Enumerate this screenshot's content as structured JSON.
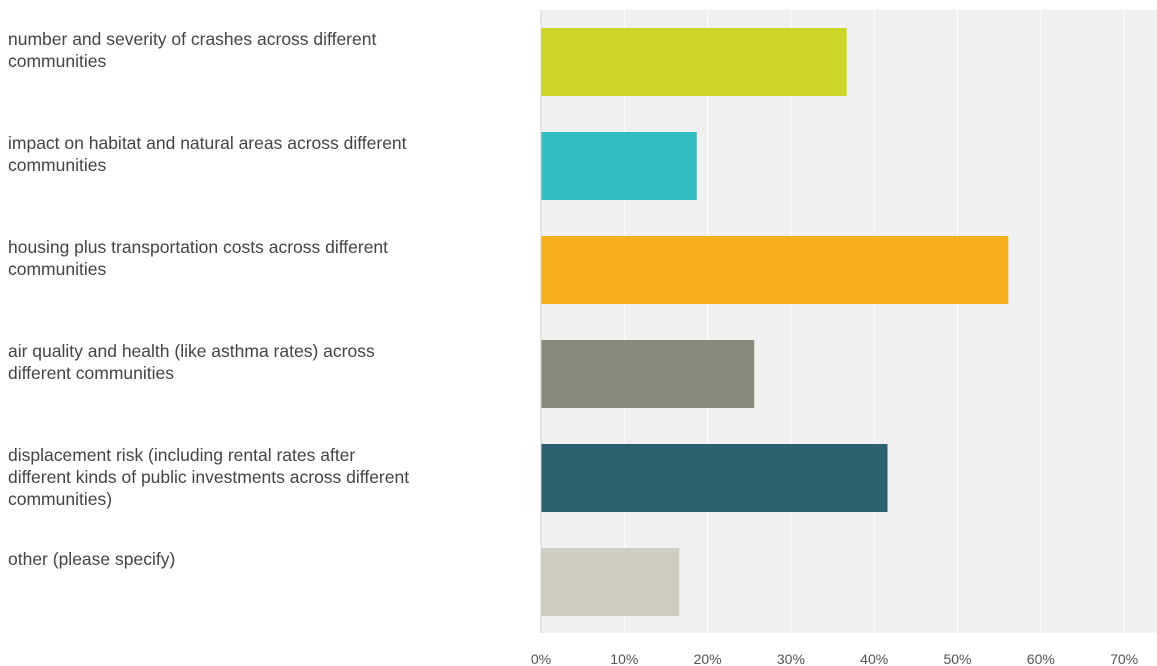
{
  "chart_data": {
    "type": "bar",
    "orientation": "horizontal",
    "title": "",
    "xlabel": "",
    "ylabel": "",
    "categories": [
      "number and severity of crashes across different communities",
      "impact on habitat and natural areas across different communities",
      "housing plus transportation costs across different communities",
      "air quality and health (like asthma rates) across different communities",
      "displacement risk (including rental rates after different kinds of public investments across different communities)",
      "other (please specify)"
    ],
    "category_label_lines": [
      [
        "number and severity of crashes across different",
        "communities"
      ],
      [
        "impact on habitat and natural areas across different",
        "communities"
      ],
      [
        "housing plus transportation costs across different",
        "communities"
      ],
      [
        "air quality and health (like asthma rates) across",
        "different communities"
      ],
      [
        "displacement risk (including rental rates after",
        "different kinds of public investments across different",
        "communities)"
      ],
      [
        "other (please specify)"
      ]
    ],
    "values": [
      36.7,
      18.7,
      56.1,
      25.6,
      41.6,
      16.6
    ],
    "value_unit": "%",
    "colors": [
      "#cdd626",
      "#33bdbf",
      "#f7af1f",
      "#898a7a",
      "#2d616e",
      "#cecdbf"
    ],
    "xlim": [
      0,
      70
    ],
    "xticks": [
      0,
      10,
      20,
      30,
      40,
      50,
      60,
      70
    ],
    "xtick_labels": [
      "0%",
      "10%",
      "20%",
      "30%",
      "40%",
      "50%",
      "60%",
      "70%"
    ],
    "grid": true,
    "legend": "none"
  }
}
